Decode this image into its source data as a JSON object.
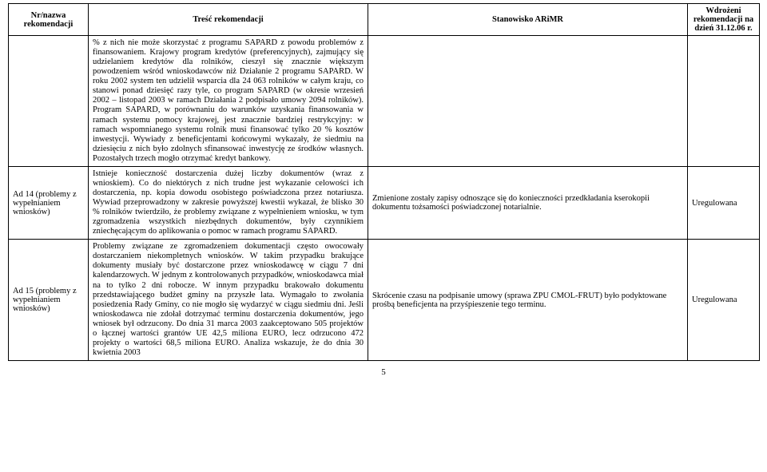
{
  "headers": {
    "nr": "Nr/nazwa rekomendacji",
    "tresc": "Treść rekomendacji",
    "stan": "Stanowisko ARiMR",
    "wdr": "Wdrożeni rekomendacji na dzień 31.12.06 r."
  },
  "rows": [
    {
      "nr": "",
      "tresc": "% z nich nie może skorzystać z programu SAPARD z powodu problemów z finansowaniem.\nKrajowy program kredytów (preferencyjnych), zajmujący się udzielaniem kredytów dla rolników, cieszył się znacznie większym powodzeniem wśród wnioskodawców niż Działanie 2 programu SAPARD. W roku 2002 system ten udzielił wsparcia dla 24 063 rolników w całym kraju, co stanowi ponad dziesięć razy tyle, co program SAPARD (w okresie wrzesień 2002 – listopad 2003 w ramach Działania 2 podpisało umowy 2094 rolników). Program SAPARD, w porównaniu do warunków uzyskania finansowania w ramach systemu pomocy krajowej, jest znacznie bardziej restrykcyjny: w ramach wspomnianego systemu rolnik musi finansować tylko 20 % kosztów inwestycji.\nWywiady z beneficjentami końcowymi wykazały, że siedmiu na dziesięciu z nich było zdolnych sfinansować inwestycję ze środków własnych. Pozostałych trzech mogło otrzymać kredyt bankowy.",
      "stan": "",
      "wdr": ""
    },
    {
      "nr": "Ad 14 (problemy z wypełnianiem wniosków)",
      "tresc": "Istnieje konieczność dostarczenia dużej liczby dokumentów (wraz z wnioskiem). Co do niektórych z nich trudne jest wykazanie celowości ich dostarczenia, np. kopia dowodu osobistego poświadczona przez notariusza. Wywiad przeprowadzony w zakresie powyższej kwestii wykazał, że blisko 30 % rolników twierdziło, że problemy związane z wypełnieniem wniosku, w tym zgromadzenia wszystkich niezbędnych dokumentów, były czynnikiem zniechęcającym do aplikowania o pomoc w ramach programu SAPARD.",
      "stan": "Zmienione zostały zapisy odnoszące się do konieczności przedkładania kserokopii dokumentu tożsamości poświadczonej notarialnie.",
      "wdr": "Uregulowana"
    },
    {
      "nr": "Ad 15 (problemy z wypełnianiem wniosków)",
      "tresc": "Problemy związane ze zgromadzeniem dokumentacji często owocowały dostarczaniem niekompletnych wniosków. W takim przypadku brakujące dokumenty musiały być dostarczone przez wnioskodawcę w ciągu 7 dni kalendarzowych. W jednym z kontrolowanych przypadków, wnioskodawca miał na to tylko 2 dni robocze. W innym przypadku brakowało dokumentu przedstawiającego budżet gminy na przyszłe lata. Wymagało to zwołania posiedzenia Rady Gminy, co nie mogło się wydarzyć w ciągu siedmiu dni. Jeśli wnioskodawca nie zdołał dotrzymać terminu dostarczenia dokumentów, jego wniosek był odrzucony.\nDo dnia 31 marca 2003 zaakceptowano 505 projektów o łącznej wartości grantów UE 42,5 miliona EURO, lecz odrzucono 472 projekty o wartości 68,5 miliona EURO. Analiza wskazuje, że do dnia 30 kwietnia 2003",
      "stan": "Skrócenie czasu na podpisanie umowy (sprawa ZPU CMOL-FRUT) było podyktowane prośbą beneficjenta na przyśpieszenie tego terminu.",
      "wdr": "Uregulowana"
    }
  ],
  "page_number": "5"
}
